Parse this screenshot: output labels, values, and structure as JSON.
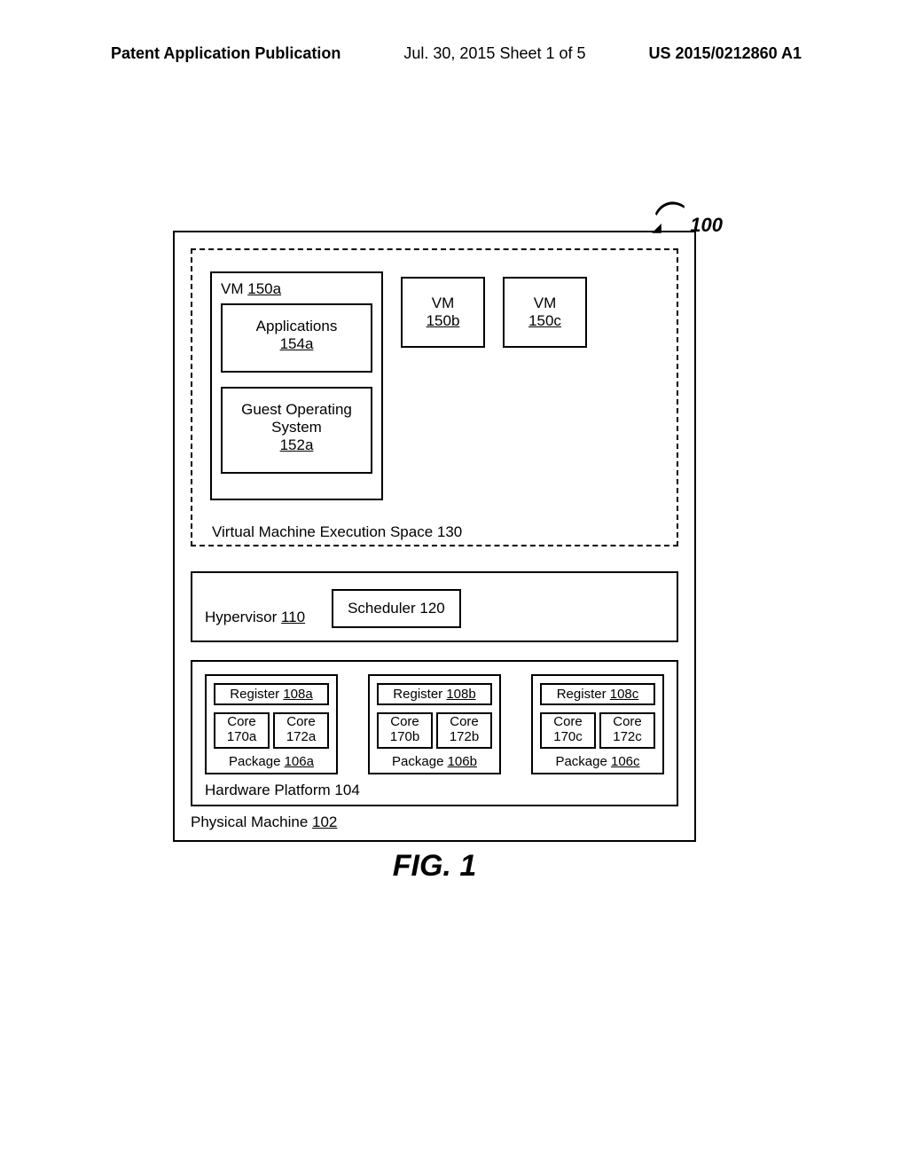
{
  "header": {
    "left": "Patent Application Publication",
    "center": "Jul. 30, 2015  Sheet 1 of 5",
    "right": "US 2015/0212860 A1"
  },
  "figure": {
    "ref_number": "100",
    "physical_machine": {
      "label": "Physical Machine",
      "ref": "102"
    },
    "vm_space": {
      "label": "Virtual Machine Execution Space 130",
      "vm_main": {
        "title_text": "VM",
        "title_ref": "150a",
        "applications": {
          "text": "Applications",
          "ref": "154a"
        },
        "guest_os": {
          "line1": "Guest Operating",
          "line2": "System",
          "ref": "152a"
        }
      },
      "vm_b": {
        "text": "VM",
        "ref": "150b"
      },
      "vm_c": {
        "text": "VM",
        "ref": "150c"
      }
    },
    "hypervisor": {
      "label": "Hypervisor",
      "ref": "110",
      "scheduler": {
        "label": "Scheduler 120"
      }
    },
    "hardware": {
      "label": "Hardware Platform 104",
      "packages": [
        {
          "register": {
            "text": "Register",
            "ref": "108a"
          },
          "cores": [
            {
              "text": "Core",
              "ref": "170a"
            },
            {
              "text": "Core",
              "ref": "172a"
            }
          ],
          "label": {
            "text": "Package",
            "ref": "106a"
          }
        },
        {
          "register": {
            "text": "Register",
            "ref": "108b"
          },
          "cores": [
            {
              "text": "Core",
              "ref": "170b"
            },
            {
              "text": "Core",
              "ref": "172b"
            }
          ],
          "label": {
            "text": "Package",
            "ref": "106b"
          }
        },
        {
          "register": {
            "text": "Register",
            "ref": "108c"
          },
          "cores": [
            {
              "text": "Core",
              "ref": "170c"
            },
            {
              "text": "Core",
              "ref": "172c"
            }
          ],
          "label": {
            "text": "Package",
            "ref": "106c"
          }
        }
      ]
    },
    "caption": "FIG. 1"
  }
}
